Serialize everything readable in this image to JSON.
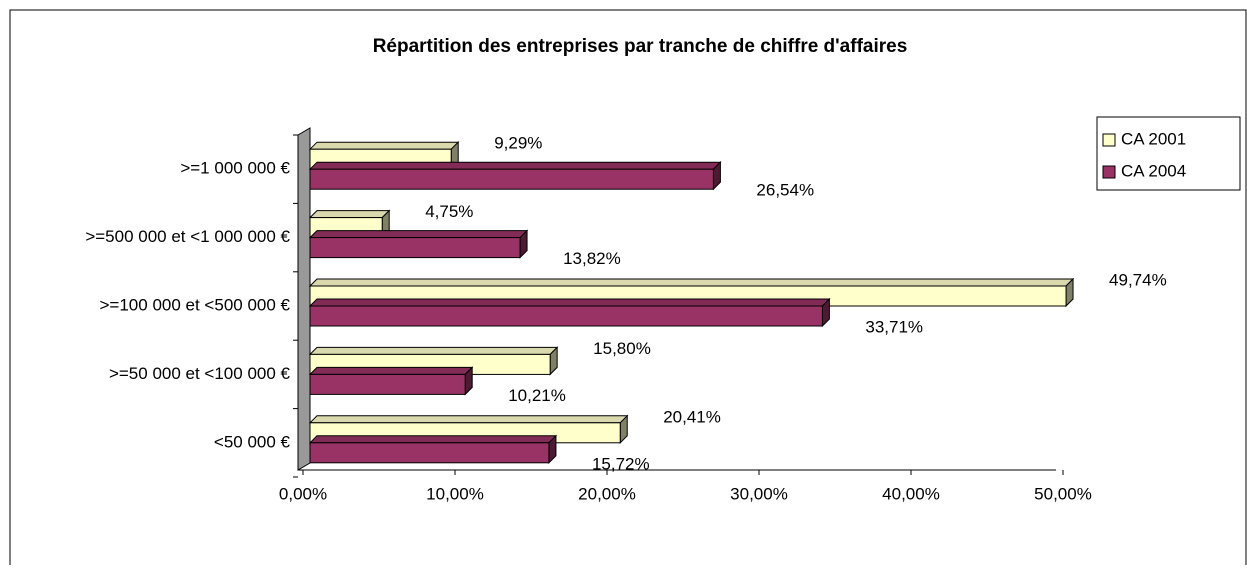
{
  "chart_data": {
    "type": "bar",
    "orientation": "horizontal",
    "title": "Répartition des entreprises par tranche de chiffre d'affaires",
    "categories": [
      ">=1 000 000 €",
      ">=500 000 et <1 000 000 €",
      ">=100 000 et <500 000 €",
      ">=50 000 et <100 000 €",
      "<50 000 €"
    ],
    "series": [
      {
        "name": "CA 2001",
        "color": "#ffffcc",
        "values": [
          9.29,
          4.75,
          49.74,
          15.8,
          20.41
        ],
        "value_labels": [
          "9,29%",
          "4,75%",
          "49,74%",
          "15,80%",
          "20,41%"
        ]
      },
      {
        "name": "CA 2004",
        "color": "#993366",
        "values": [
          26.54,
          13.82,
          33.71,
          10.21,
          15.72
        ],
        "value_labels": [
          "26,54%",
          "13,82%",
          "33,71%",
          "10,21%",
          "15,72%"
        ]
      }
    ],
    "xlim": [
      0,
      50
    ],
    "xticks": [
      {
        "value": 0,
        "label": "0,00%"
      },
      {
        "value": 10,
        "label": "10,00%"
      },
      {
        "value": 20,
        "label": "20,00%"
      },
      {
        "value": 30,
        "label": "30,00%"
      },
      {
        "value": 40,
        "label": "40,00%"
      },
      {
        "value": 50,
        "label": "50,00%"
      }
    ],
    "legend": "right"
  }
}
